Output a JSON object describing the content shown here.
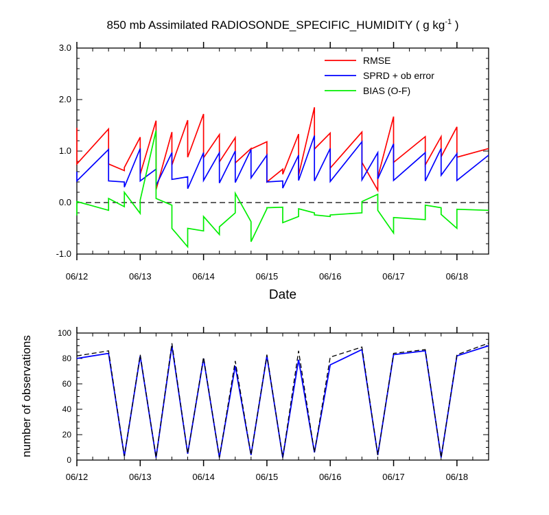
{
  "title_main": "850 mb Assimilated RADIOSONDE_SPECIFIC_HUMIDITY ( g kg",
  "title_sup": "-1",
  "title_end": " )",
  "chart_data": [
    {
      "type": "line",
      "xlabel": "Date",
      "ylabel": "",
      "xlim": [
        0,
        6.5
      ],
      "ylim": [
        -1.0,
        3.0
      ],
      "yticks": [
        "-1.0",
        "0.0",
        "1.0",
        "2.0",
        "3.0"
      ],
      "xticks": [
        "06/12",
        "06/13",
        "06/14",
        "06/15",
        "06/16",
        "06/17",
        "06/18"
      ],
      "legend": {
        "position": "top-right"
      },
      "series": [
        {
          "name": "RMSE",
          "color": "#ff0000",
          "x": [
            0,
            0,
            0.5,
            0.5,
            0.75,
            0.75,
            1.0,
            1.0,
            1.25,
            1.25,
            1.5,
            1.5,
            1.75,
            1.75,
            2.0,
            2.0,
            2.25,
            2.25,
            2.5,
            2.5,
            2.75,
            2.75,
            3.0,
            3.0,
            3.25,
            3.25,
            3.5,
            3.5,
            3.75,
            3.75,
            4.0,
            4.0,
            4.5,
            4.5,
            4.75,
            4.75,
            5.0,
            5.0,
            5.5,
            5.5,
            5.75,
            5.75,
            6.0,
            6.0,
            6.5
          ],
          "y": [
            1.45,
            0.75,
            1.43,
            0.75,
            0.62,
            0.68,
            1.27,
            0.55,
            1.59,
            0.25,
            1.37,
            0.73,
            1.6,
            0.88,
            1.72,
            0.87,
            1.32,
            0.79,
            1.26,
            0.77,
            1.05,
            1.04,
            1.18,
            0.4,
            0.65,
            0.55,
            1.33,
            0.53,
            1.85,
            1.04,
            1.35,
            0.67,
            1.37,
            0.78,
            0.24,
            0.49,
            1.67,
            0.78,
            1.28,
            0.73,
            1.28,
            0.89,
            1.47,
            0.88,
            1.05
          ]
        },
        {
          "name": "SPRD + ob error",
          "color": "#0000ff",
          "x": [
            0,
            0,
            0.5,
            0.5,
            0.75,
            0.75,
            1.0,
            1.0,
            1.25,
            1.25,
            1.5,
            1.5,
            1.75,
            1.75,
            2.0,
            2.0,
            2.25,
            2.25,
            2.5,
            2.5,
            2.75,
            2.75,
            3.0,
            3.0,
            3.25,
            3.25,
            3.5,
            3.5,
            3.75,
            3.75,
            4.0,
            4.0,
            4.5,
            4.5,
            4.75,
            4.75,
            5.0,
            5.0,
            5.5,
            5.5,
            5.75,
            5.75,
            6.0,
            6.0,
            6.5
          ],
          "y": [
            0.6,
            0.42,
            1.03,
            0.42,
            0.4,
            0.3,
            1.05,
            0.42,
            0.65,
            0.33,
            0.97,
            0.45,
            0.5,
            0.27,
            0.97,
            0.43,
            0.97,
            0.38,
            1.0,
            0.39,
            1.03,
            0.48,
            0.92,
            0.4,
            0.42,
            0.28,
            0.92,
            0.43,
            1.3,
            0.42,
            1.05,
            0.41,
            1.18,
            0.44,
            0.97,
            0.46,
            1.14,
            0.43,
            0.97,
            0.42,
            1.05,
            0.53,
            0.95,
            0.43,
            0.92
          ]
        },
        {
          "name": "BIAS (O-F)",
          "color": "#00ee00",
          "x": [
            0,
            0,
            0.5,
            0.5,
            0.75,
            0.75,
            1.0,
            1.0,
            1.25,
            1.25,
            1.5,
            1.5,
            1.75,
            1.75,
            2.0,
            2.0,
            2.25,
            2.25,
            2.5,
            2.5,
            2.75,
            2.75,
            3.0,
            3.0,
            3.25,
            3.25,
            3.5,
            3.5,
            3.75,
            3.75,
            4.0,
            4.0,
            4.5,
            4.5,
            4.75,
            4.75,
            5.0,
            5.0,
            5.5,
            5.5,
            5.75,
            5.75,
            6.0,
            6.0,
            6.5
          ],
          "y": [
            -0.25,
            0.02,
            -0.15,
            0.08,
            -0.08,
            0.2,
            -0.21,
            0.05,
            1.4,
            0.08,
            -0.05,
            -0.5,
            -0.86,
            -0.5,
            -0.55,
            -0.27,
            -0.62,
            -0.47,
            -0.2,
            0.18,
            -0.37,
            -0.76,
            -0.12,
            -0.1,
            -0.09,
            -0.39,
            -0.27,
            -0.12,
            -0.2,
            -0.24,
            -0.27,
            -0.24,
            -0.2,
            0.02,
            0.16,
            -0.15,
            -0.59,
            -0.29,
            -0.33,
            -0.05,
            -0.1,
            -0.23,
            -0.5,
            -0.13,
            -0.15
          ]
        }
      ],
      "reference_line": {
        "y": 0.0,
        "style": "dashed"
      }
    },
    {
      "type": "line",
      "xlabel": "",
      "ylabel": "number of observations",
      "xlim": [
        0,
        6.5
      ],
      "ylim": [
        0,
        100
      ],
      "yticks": [
        "0",
        "20",
        "40",
        "60",
        "80",
        "100"
      ],
      "xticks": [
        "06/12",
        "06/13",
        "06/14",
        "06/15",
        "06/16",
        "06/17",
        "06/18"
      ],
      "series": [
        {
          "color": "#0000ff",
          "style": "solid",
          "x": [
            0,
            0.5,
            0.75,
            1.0,
            1.25,
            1.5,
            1.75,
            2.0,
            2.25,
            2.5,
            2.75,
            3.0,
            3.25,
            3.5,
            3.75,
            4.0,
            4.5,
            4.75,
            5.0,
            5.5,
            5.75,
            6.0,
            6.5
          ],
          "y": [
            80,
            84,
            3,
            82,
            2,
            90,
            5,
            80,
            2,
            74,
            4,
            82,
            2,
            79,
            6,
            75,
            87,
            4,
            83,
            86,
            2,
            82,
            90
          ]
        },
        {
          "color": "#000000",
          "style": "dashed",
          "x": [
            0,
            0.5,
            0.75,
            1.0,
            1.25,
            1.5,
            1.75,
            2.0,
            2.25,
            2.5,
            2.75,
            3.0,
            3.25,
            3.5,
            3.75,
            4.0,
            4.5,
            4.75,
            5.0,
            5.5,
            5.75,
            6.0,
            6.5
          ],
          "y": [
            82,
            86,
            3,
            83,
            2,
            92,
            5,
            81,
            2,
            78,
            4,
            83,
            2,
            86,
            6,
            81,
            89,
            4,
            84,
            87,
            2,
            83,
            92
          ]
        }
      ]
    }
  ]
}
